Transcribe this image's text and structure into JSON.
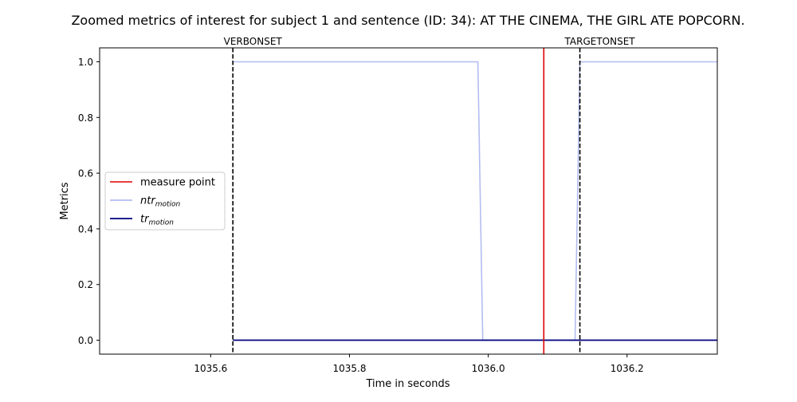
{
  "chart_data": {
    "type": "line",
    "title": "Zoomed metrics of interest for subject 1 and sentence (ID: 34): AT THE CINEMA, THE GIRL ATE POPCORN.",
    "xlabel": "Time in seconds",
    "ylabel": "Metrics",
    "xlim": [
      1035.44,
      1036.33
    ],
    "ylim": [
      -0.05,
      1.05
    ],
    "x_ticks": [
      1035.6,
      1035.8,
      1036.0,
      1036.2
    ],
    "x_tick_labels": [
      "1035.6",
      "1035.8",
      "1036.0",
      "1036.2"
    ],
    "y_ticks": [
      0.0,
      0.2,
      0.4,
      0.6,
      0.8,
      1.0
    ],
    "y_tick_labels": [
      "0.0",
      "0.2",
      "0.4",
      "0.6",
      "0.8",
      "1.0"
    ],
    "grid": false,
    "legend_position": "center-left",
    "vlines": [
      {
        "label": "VERBONSET",
        "x": 1035.632,
        "color": "#000000",
        "style": "dashed"
      },
      {
        "label": "TARGETONSET",
        "x": 1036.132,
        "color": "#000000",
        "style": "dashed"
      }
    ],
    "measure_point": {
      "x": 1036.08,
      "color": "#dd0000"
    },
    "series": [
      {
        "name": "ntr",
        "subscript": "motion",
        "color": "#b3bdf0",
        "x": [
          1035.632,
          1035.985,
          1035.992,
          1036.125,
          1036.132,
          1036.33
        ],
        "y": [
          1.0,
          1.0,
          0.0,
          0.0,
          1.0,
          1.0
        ]
      },
      {
        "name": "tr",
        "subscript": "motion",
        "color": "#00007f",
        "x": [
          1035.632,
          1036.33
        ],
        "y": [
          0.0,
          0.0
        ]
      }
    ],
    "legend": [
      {
        "kind": "line",
        "label": "measure point",
        "color": "#dd0000"
      },
      {
        "kind": "series",
        "label": "ntr",
        "subscript": "motion",
        "color": "#b3bdf0"
      },
      {
        "kind": "series",
        "label": "tr",
        "subscript": "motion",
        "color": "#00007f"
      }
    ]
  }
}
